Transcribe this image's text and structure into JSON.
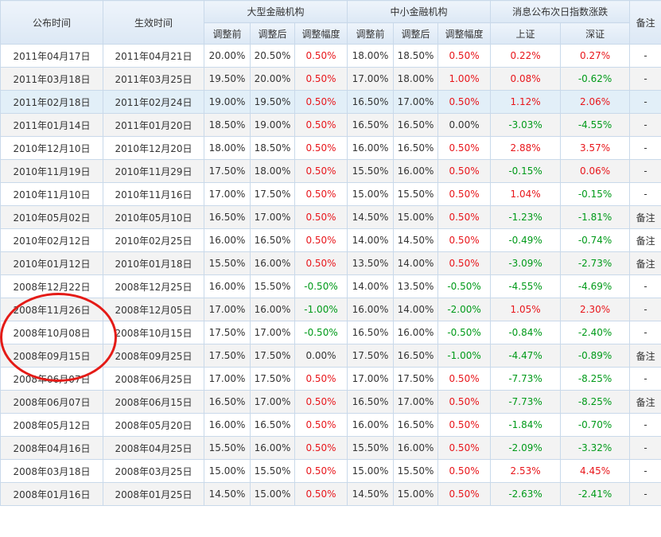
{
  "header": {
    "publish_time": "公布时间",
    "effective_time": "生效时间",
    "large_institutions": "大型金融机构",
    "small_institutions": "中小金融机构",
    "next_day_change": "消息公布次日指数涨跌",
    "remark": "备注",
    "before": "调整前",
    "after": "调整后",
    "range": "调整幅度",
    "shanghai": "上证",
    "shenzhen": "深证"
  },
  "rows": [
    {
      "publish": "2011年04月17日",
      "effective": "2011年04月21日",
      "large_before": "20.00%",
      "large_after": "20.50%",
      "large_change": "0.50%",
      "small_before": "18.00%",
      "small_after": "18.50%",
      "small_change": "0.50%",
      "sh": "0.22%",
      "sz": "0.27%",
      "remark": "-"
    },
    {
      "publish": "2011年03月18日",
      "effective": "2011年03月25日",
      "large_before": "19.50%",
      "large_after": "20.00%",
      "large_change": "0.50%",
      "small_before": "17.00%",
      "small_after": "18.00%",
      "small_change": "1.00%",
      "sh": "0.08%",
      "sz": "-0.62%",
      "remark": "-"
    },
    {
      "publish": "2011年02月18日",
      "effective": "2011年02月24日",
      "large_before": "19.00%",
      "large_after": "19.50%",
      "large_change": "0.50%",
      "small_before": "16.50%",
      "small_after": "17.00%",
      "small_change": "0.50%",
      "sh": "1.12%",
      "sz": "2.06%",
      "remark": "-"
    },
    {
      "publish": "2011年01月14日",
      "effective": "2011年01月20日",
      "large_before": "18.50%",
      "large_after": "19.00%",
      "large_change": "0.50%",
      "small_before": "16.50%",
      "small_after": "16.50%",
      "small_change": "0.00%",
      "sh": "-3.03%",
      "sz": "-4.55%",
      "remark": "-"
    },
    {
      "publish": "2010年12月10日",
      "effective": "2010年12月20日",
      "large_before": "18.00%",
      "large_after": "18.50%",
      "large_change": "0.50%",
      "small_before": "16.00%",
      "small_after": "16.50%",
      "small_change": "0.50%",
      "sh": "2.88%",
      "sz": "3.57%",
      "remark": "-"
    },
    {
      "publish": "2010年11月19日",
      "effective": "2010年11月29日",
      "large_before": "17.50%",
      "large_after": "18.00%",
      "large_change": "0.50%",
      "small_before": "15.50%",
      "small_after": "16.00%",
      "small_change": "0.50%",
      "sh": "-0.15%",
      "sz": "0.06%",
      "remark": "-"
    },
    {
      "publish": "2010年11月10日",
      "effective": "2010年11月16日",
      "large_before": "17.00%",
      "large_after": "17.50%",
      "large_change": "0.50%",
      "small_before": "15.00%",
      "small_after": "15.50%",
      "small_change": "0.50%",
      "sh": "1.04%",
      "sz": "-0.15%",
      "remark": "-"
    },
    {
      "publish": "2010年05月02日",
      "effective": "2010年05月10日",
      "large_before": "16.50%",
      "large_after": "17.00%",
      "large_change": "0.50%",
      "small_before": "14.50%",
      "small_after": "15.00%",
      "small_change": "0.50%",
      "sh": "-1.23%",
      "sz": "-1.81%",
      "remark": "备注"
    },
    {
      "publish": "2010年02月12日",
      "effective": "2010年02月25日",
      "large_before": "16.00%",
      "large_after": "16.50%",
      "large_change": "0.50%",
      "small_before": "14.00%",
      "small_after": "14.50%",
      "small_change": "0.50%",
      "sh": "-0.49%",
      "sz": "-0.74%",
      "remark": "备注"
    },
    {
      "publish": "2010年01月12日",
      "effective": "2010年01月18日",
      "large_before": "15.50%",
      "large_after": "16.00%",
      "large_change": "0.50%",
      "small_before": "13.50%",
      "small_after": "14.00%",
      "small_change": "0.50%",
      "sh": "-3.09%",
      "sz": "-2.73%",
      "remark": "备注"
    },
    {
      "publish": "2008年12月22日",
      "effective": "2008年12月25日",
      "large_before": "16.00%",
      "large_after": "15.50%",
      "large_change": "-0.50%",
      "small_before": "14.00%",
      "small_after": "13.50%",
      "small_change": "-0.50%",
      "sh": "-4.55%",
      "sz": "-4.69%",
      "remark": "-"
    },
    {
      "publish": "2008年11月26日",
      "effective": "2008年12月05日",
      "large_before": "17.00%",
      "large_after": "16.00%",
      "large_change": "-1.00%",
      "small_before": "16.00%",
      "small_after": "14.00%",
      "small_change": "-2.00%",
      "sh": "1.05%",
      "sz": "2.30%",
      "remark": "-"
    },
    {
      "publish": "2008年10月08日",
      "effective": "2008年10月15日",
      "large_before": "17.50%",
      "large_after": "17.00%",
      "large_change": "-0.50%",
      "small_before": "16.50%",
      "small_after": "16.00%",
      "small_change": "-0.50%",
      "sh": "-0.84%",
      "sz": "-2.40%",
      "remark": "-"
    },
    {
      "publish": "2008年09月15日",
      "effective": "2008年09月25日",
      "large_before": "17.50%",
      "large_after": "17.50%",
      "large_change": "0.00%",
      "small_before": "17.50%",
      "small_after": "16.50%",
      "small_change": "-1.00%",
      "sh": "-4.47%",
      "sz": "-0.89%",
      "remark": "备注"
    },
    {
      "publish": "2008年06月07日",
      "effective": "2008年06月25日",
      "large_before": "17.00%",
      "large_after": "17.50%",
      "large_change": "0.50%",
      "small_before": "17.00%",
      "small_after": "17.50%",
      "small_change": "0.50%",
      "sh": "-7.73%",
      "sz": "-8.25%",
      "remark": "-"
    },
    {
      "publish": "2008年06月07日",
      "effective": "2008年06月15日",
      "large_before": "16.50%",
      "large_after": "17.00%",
      "large_change": "0.50%",
      "small_before": "16.50%",
      "small_after": "17.00%",
      "small_change": "0.50%",
      "sh": "-7.73%",
      "sz": "-8.25%",
      "remark": "备注"
    },
    {
      "publish": "2008年05月12日",
      "effective": "2008年05月20日",
      "large_before": "16.00%",
      "large_after": "16.50%",
      "large_change": "0.50%",
      "small_before": "16.00%",
      "small_after": "16.50%",
      "small_change": "0.50%",
      "sh": "-1.84%",
      "sz": "-0.70%",
      "remark": "-"
    },
    {
      "publish": "2008年04月16日",
      "effective": "2008年04月25日",
      "large_before": "15.50%",
      "large_after": "16.00%",
      "large_change": "0.50%",
      "small_before": "15.50%",
      "small_after": "16.00%",
      "small_change": "0.50%",
      "sh": "-2.09%",
      "sz": "-3.32%",
      "remark": "-"
    },
    {
      "publish": "2008年03月18日",
      "effective": "2008年03月25日",
      "large_before": "15.00%",
      "large_after": "15.50%",
      "large_change": "0.50%",
      "small_before": "15.00%",
      "small_after": "15.50%",
      "small_change": "0.50%",
      "sh": "2.53%",
      "sz": "4.45%",
      "remark": "-"
    },
    {
      "publish": "2008年01月16日",
      "effective": "2008年01月25日",
      "large_before": "14.50%",
      "large_after": "15.00%",
      "large_change": "0.50%",
      "small_before": "14.50%",
      "small_after": "15.00%",
      "small_change": "0.50%",
      "sh": "-2.63%",
      "sz": "-2.41%",
      "remark": "-"
    }
  ],
  "colors": {
    "positive": "#e8161b",
    "negative": "#009a19",
    "neutral": "#333333",
    "highlighted_row": "#e2eff8",
    "annotation_circle": "#e41b17"
  },
  "highlighted_row_index": 2,
  "circled_rows": [
    10,
    11,
    12
  ]
}
